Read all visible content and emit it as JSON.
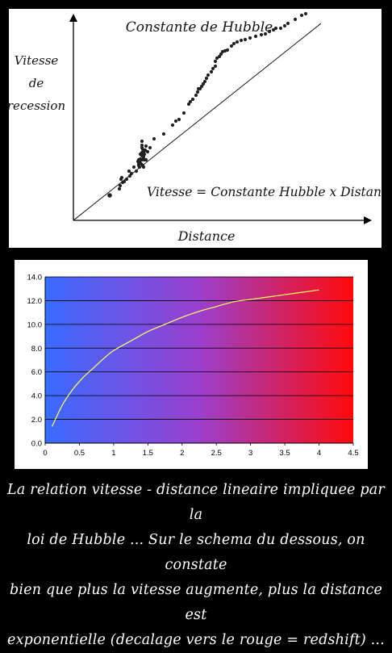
{
  "chart_data": [
    {
      "type": "scatter",
      "title": "Constante de Hubble",
      "ylabel_lines": [
        "Vitesse",
        "de",
        "recession"
      ],
      "xlabel": "Distance",
      "annotation": "Vitesse = Constante Hubble x Distance",
      "fit": "linear",
      "points": [
        [
          12,
          33
        ],
        [
          24,
          41
        ],
        [
          25,
          45
        ],
        [
          28,
          49
        ],
        [
          26,
          53
        ],
        [
          27,
          55
        ],
        [
          30,
          50
        ],
        [
          33,
          53
        ],
        [
          37,
          57
        ],
        [
          39,
          60
        ],
        [
          36,
          63
        ],
        [
          45,
          63
        ],
        [
          42,
          68
        ],
        [
          48,
          70
        ],
        [
          48,
          72
        ],
        [
          49,
          74
        ],
        [
          47,
          75
        ],
        [
          50,
          76
        ],
        [
          50,
          78
        ],
        [
          52,
          82
        ],
        [
          50,
          84
        ],
        [
          52,
          86
        ],
        [
          54,
          82
        ],
        [
          52,
          92
        ],
        [
          53,
          90
        ],
        [
          55,
          88
        ],
        [
          55,
          84
        ],
        [
          54,
          80
        ],
        [
          55,
          77
        ],
        [
          52,
          77
        ],
        [
          48,
          77
        ],
        [
          51,
          72
        ],
        [
          53,
          70
        ],
        [
          54,
          68
        ],
        [
          49,
          68
        ],
        [
          57,
          77
        ],
        [
          56,
          89
        ],
        [
          52,
          95
        ],
        [
          52,
          100
        ],
        [
          57,
          94
        ],
        [
          59,
          87
        ],
        [
          62,
          92
        ],
        [
          67,
          103
        ],
        [
          79,
          109
        ],
        [
          90,
          120
        ],
        [
          94,
          125
        ],
        [
          98,
          127
        ],
        [
          104,
          135
        ],
        [
          110,
          146
        ],
        [
          112,
          149
        ],
        [
          115,
          152
        ],
        [
          119,
          157
        ],
        [
          121,
          161
        ],
        [
          122,
          165
        ],
        [
          124,
          165
        ],
        [
          126,
          168
        ],
        [
          128,
          171
        ],
        [
          130,
          174
        ],
        [
          132,
          178
        ],
        [
          134,
          182
        ],
        [
          138,
          186
        ],
        [
          140,
          190
        ],
        [
          143,
          193
        ],
        [
          143,
          199
        ],
        [
          145,
          203
        ],
        [
          148,
          205
        ],
        [
          150,
          208
        ],
        [
          152,
          211
        ],
        [
          155,
          212
        ],
        [
          158,
          213
        ],
        [
          163,
          218
        ],
        [
          166,
          221
        ],
        [
          170,
          223
        ],
        [
          175,
          225
        ],
        [
          180,
          226
        ],
        [
          186,
          228
        ],
        [
          193,
          230
        ],
        [
          200,
          232
        ],
        [
          205,
          233
        ],
        [
          210,
          236
        ],
        [
          215,
          238
        ],
        [
          218,
          240
        ],
        [
          224,
          240
        ],
        [
          229,
          243
        ],
        [
          233,
          246
        ],
        [
          242,
          251
        ],
        [
          250,
          256
        ],
        [
          255,
          258
        ]
      ],
      "trend_point_zero": [
        0,
        0
      ],
      "trend_point_end": [
        275,
        236
      ]
    },
    {
      "type": "line",
      "x": [
        0.1,
        0.25,
        0.4,
        0.55,
        0.7,
        0.85,
        1.0,
        1.25,
        1.5,
        1.75,
        2.0,
        2.25,
        2.5,
        2.75,
        3.0,
        3.25,
        3.5,
        3.75,
        4.0
      ],
      "y": [
        1.4,
        3.2,
        4.5,
        5.5,
        6.3,
        7.1,
        7.8,
        8.6,
        9.4,
        10.0,
        10.6,
        11.1,
        11.5,
        11.9,
        12.1,
        12.3,
        12.5,
        12.7,
        12.9
      ],
      "xlim": [
        0,
        4.5
      ],
      "ylim": [
        0,
        14
      ],
      "xticks": [
        "0",
        "0.5",
        "1",
        "1.5",
        "2",
        "2.5",
        "3",
        "3.5",
        "4",
        "4.5"
      ],
      "yticks": [
        "0.0",
        "2.0",
        "4.0",
        "6.0",
        "8.0",
        "10.0",
        "12.0",
        "14.0"
      ],
      "grid": true,
      "background_gradient": [
        "#3a6bff",
        "#9b3fce",
        "#ff0a0a"
      ],
      "line_color": "#ffff66"
    }
  ],
  "caption_lines": [
    "La relation vitesse - distance lineaire impliquee par la",
    "loi de Hubble ... Sur le schema du dessous, on constate",
    "bien que plus la vitesse augmente, plus la distance est",
    "exponentielle (decalage vers le rouge = redshift) ..."
  ]
}
